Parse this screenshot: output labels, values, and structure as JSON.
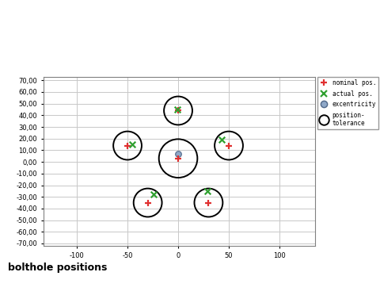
{
  "chart_data": {
    "type": "scatter",
    "title": "bolthole positions",
    "xlim": [
      -133,
      135
    ],
    "ylim": [
      -72,
      73
    ],
    "xticks": [
      -100,
      -50,
      0,
      50,
      100
    ],
    "yticks": [
      {
        "value": 70,
        "label": "70,00"
      },
      {
        "value": 60,
        "label": "60,00"
      },
      {
        "value": 50,
        "label": "50,00"
      },
      {
        "value": 40,
        "label": "40,00"
      },
      {
        "value": 30,
        "label": "30,00"
      },
      {
        "value": 20,
        "label": "20,00"
      },
      {
        "value": 10,
        "label": "10,00"
      },
      {
        "value": 0,
        "label": "0,00"
      },
      {
        "value": -10,
        "label": "-10,00"
      },
      {
        "value": -20,
        "label": "-20,00"
      },
      {
        "value": -30,
        "label": "-30,00"
      },
      {
        "value": -40,
        "label": "-40,00"
      },
      {
        "value": -50,
        "label": "-50,00"
      },
      {
        "value": -60,
        "label": "-60,00"
      },
      {
        "value": -70,
        "label": "-70,00"
      }
    ],
    "grid": true,
    "legend": "upper right",
    "series": [
      {
        "name": "nominal pos.",
        "color": "#e03030",
        "marker": "+",
        "x": [
          0,
          0,
          -50,
          50,
          -30,
          30
        ],
        "y": [
          3,
          44,
          14,
          14,
          -35,
          -35
        ]
      },
      {
        "name": "actual pos.",
        "color": "#30a030",
        "marker": "x",
        "x": [
          -1,
          -45,
          43,
          -24,
          29
        ],
        "y": [
          45,
          15,
          19,
          -28,
          -25
        ]
      },
      {
        "name": "excentricity",
        "color": "#8fa8c8",
        "marker": "o",
        "x": [
          0
        ],
        "y": [
          7
        ]
      },
      {
        "name": "position-\ntolerance",
        "color": "#000000",
        "marker": "o",
        "x": [
          0,
          0,
          -50,
          50,
          -30,
          30
        ],
        "y": [
          3,
          44,
          14,
          14,
          -35,
          -35
        ],
        "diameters": [
          38,
          28,
          28,
          28,
          28,
          28
        ]
      }
    ]
  }
}
